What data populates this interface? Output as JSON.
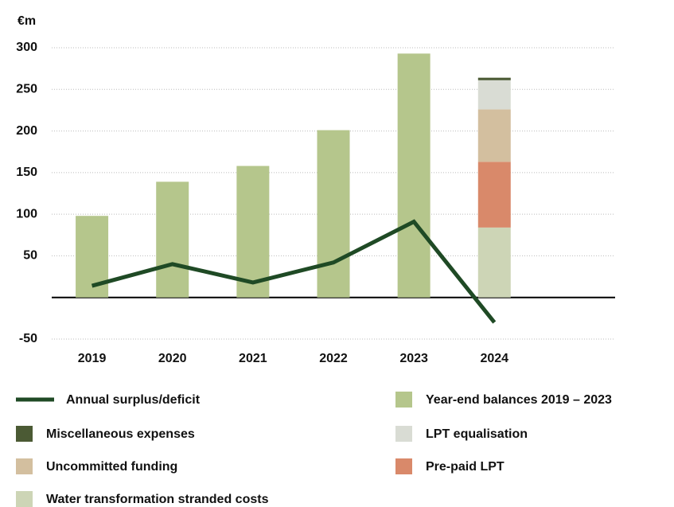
{
  "chart_data": {
    "type": "bar",
    "unit": "€m",
    "categories": [
      "2019",
      "2020",
      "2021",
      "2022",
      "2023",
      "2024"
    ],
    "series": [
      {
        "name": "Annual surplus/deficit",
        "type": "line",
        "color": "#1f4a25",
        "values": [
          14,
          40,
          18,
          42,
          91,
          -30
        ]
      },
      {
        "name": "Year-end balances 2019 – 2023",
        "color": "#b5c68c",
        "values": [
          98,
          139,
          158,
          201,
          293,
          null
        ]
      },
      {
        "name": "Miscellaneous expenses",
        "color": "#4b5a34",
        "values": [
          null,
          null,
          null,
          null,
          null,
          3
        ]
      },
      {
        "name": "LPT equalisation",
        "color": "#d9dcd4",
        "values": [
          null,
          null,
          null,
          null,
          null,
          35
        ]
      },
      {
        "name": "Uncommitted funding",
        "color": "#d3bf9f",
        "values": [
          null,
          null,
          null,
          null,
          null,
          63
        ]
      },
      {
        "name": "Pre-paid LPT",
        "color": "#d9896a",
        "values": [
          null,
          null,
          null,
          null,
          null,
          79
        ]
      },
      {
        "name": "Water transformation stranded costs",
        "color": "#cdd5b6",
        "values": [
          null,
          null,
          null,
          null,
          null,
          84
        ]
      }
    ],
    "ylim": [
      -50,
      300
    ],
    "yticks": [
      -50,
      50,
      100,
      150,
      200,
      250,
      300
    ],
    "grid": true
  }
}
